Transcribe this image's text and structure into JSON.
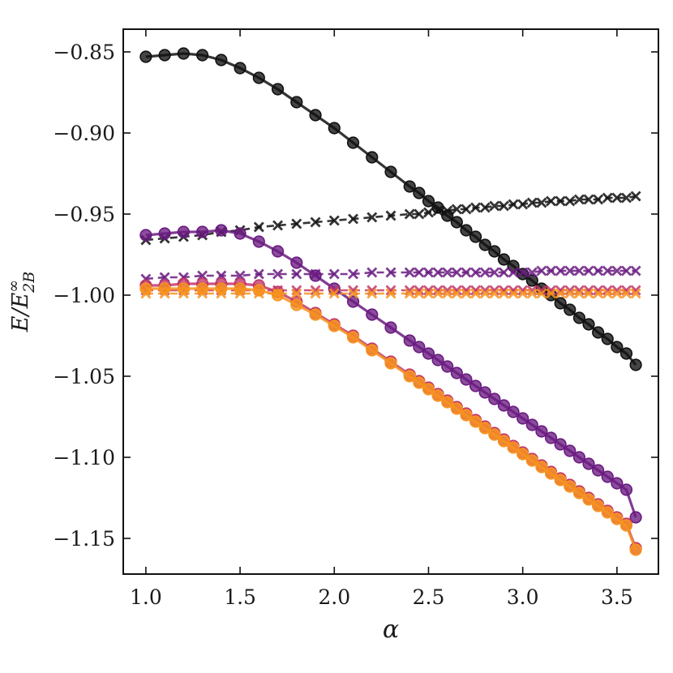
{
  "chart_data": {
    "type": "line",
    "title": "",
    "xlabel": "α",
    "ylabel": {
      "base": "E/E",
      "superscript": "∞",
      "subscript": "2B",
      "full": "E/E∞2B"
    },
    "xlim": [
      0.88,
      3.72
    ],
    "ylim": [
      -1.172,
      -0.836
    ],
    "xticks": [
      1.0,
      1.5,
      2.0,
      2.5,
      3.0,
      3.5
    ],
    "xtick_labels": [
      "1.0",
      "1.5",
      "2.0",
      "2.5",
      "3.0",
      "3.5"
    ],
    "yticks": [
      -0.85,
      -0.9,
      -0.95,
      -1.0,
      -1.05,
      -1.1,
      -1.15
    ],
    "ytick_labels": [
      "−0.85",
      "−0.90",
      "−0.95",
      "−1.00",
      "−1.05",
      "−1.10",
      "−1.15"
    ],
    "x": [
      1.0,
      1.1,
      1.2,
      1.3,
      1.4,
      1.5,
      1.6,
      1.7,
      1.8,
      1.9,
      2.0,
      2.1,
      2.2,
      2.3,
      2.4,
      2.45,
      2.5,
      2.55,
      2.6,
      2.65,
      2.7,
      2.75,
      2.8,
      2.85,
      2.9,
      2.95,
      3.0,
      3.05,
      3.1,
      3.15,
      3.2,
      3.25,
      3.3,
      3.35,
      3.4,
      3.45,
      3.5,
      3.55,
      3.6
    ],
    "series": [
      {
        "name": "black-circles",
        "marker": "circle",
        "color": "#111111",
        "values": [
          -0.853,
          -0.852,
          -0.851,
          -0.852,
          -0.855,
          -0.86,
          -0.866,
          -0.873,
          -0.881,
          -0.889,
          -0.897,
          -0.906,
          -0.915,
          -0.924,
          -0.933,
          -0.937,
          -0.942,
          -0.946,
          -0.951,
          -0.955,
          -0.96,
          -0.964,
          -0.969,
          -0.973,
          -0.978,
          -0.982,
          -0.987,
          -0.991,
          -0.996,
          -1.0,
          -1.005,
          -1.009,
          -1.014,
          -1.018,
          -1.023,
          -1.027,
          -1.032,
          -1.036,
          -1.043
        ]
      },
      {
        "name": "black-crosses",
        "marker": "cross",
        "color": "#111111",
        "values": [
          -0.966,
          -0.965,
          -0.964,
          -0.963,
          -0.961,
          -0.96,
          -0.958,
          -0.957,
          -0.956,
          -0.955,
          -0.954,
          -0.953,
          -0.952,
          -0.951,
          -0.95,
          -0.95,
          -0.949,
          -0.948,
          -0.948,
          -0.947,
          -0.947,
          -0.946,
          -0.946,
          -0.945,
          -0.945,
          -0.944,
          -0.944,
          -0.943,
          -0.943,
          -0.942,
          -0.942,
          -0.942,
          -0.941,
          -0.941,
          -0.941,
          -0.94,
          -0.94,
          -0.94,
          -0.939
        ]
      },
      {
        "name": "purple-circles",
        "marker": "circle",
        "color": "#6a1b80",
        "values": [
          -0.963,
          -0.962,
          -0.961,
          -0.961,
          -0.96,
          -0.962,
          -0.967,
          -0.973,
          -0.98,
          -0.988,
          -0.996,
          -1.004,
          -1.012,
          -1.02,
          -1.028,
          -1.032,
          -1.036,
          -1.04,
          -1.044,
          -1.048,
          -1.052,
          -1.056,
          -1.06,
          -1.064,
          -1.068,
          -1.072,
          -1.076,
          -1.08,
          -1.084,
          -1.088,
          -1.092,
          -1.096,
          -1.1,
          -1.104,
          -1.108,
          -1.112,
          -1.116,
          -1.12,
          -1.137
        ]
      },
      {
        "name": "purple-crosses",
        "marker": "cross",
        "color": "#6a1b80",
        "values": [
          -0.99,
          -0.989,
          -0.989,
          -0.988,
          -0.988,
          -0.988,
          -0.987,
          -0.987,
          -0.987,
          -0.987,
          -0.987,
          -0.987,
          -0.986,
          -0.986,
          -0.986,
          -0.986,
          -0.986,
          -0.986,
          -0.986,
          -0.986,
          -0.986,
          -0.986,
          -0.986,
          -0.986,
          -0.986,
          -0.986,
          -0.986,
          -0.986,
          -0.985,
          -0.985,
          -0.985,
          -0.985,
          -0.985,
          -0.985,
          -0.985,
          -0.985,
          -0.985,
          -0.985,
          -0.985
        ]
      },
      {
        "name": "magenta-circles",
        "marker": "circle",
        "color": "#c2376a",
        "values": [
          -0.994,
          -0.994,
          -0.993,
          -0.993,
          -0.993,
          -0.993,
          -0.994,
          -0.998,
          -1.004,
          -1.011,
          -1.018,
          -1.025,
          -1.033,
          -1.041,
          -1.049,
          -1.053,
          -1.057,
          -1.061,
          -1.065,
          -1.069,
          -1.073,
          -1.077,
          -1.081,
          -1.085,
          -1.089,
          -1.093,
          -1.097,
          -1.101,
          -1.105,
          -1.109,
          -1.113,
          -1.117,
          -1.121,
          -1.125,
          -1.129,
          -1.133,
          -1.137,
          -1.141,
          -1.156
        ]
      },
      {
        "name": "magenta-crosses",
        "marker": "cross",
        "color": "#c2376a",
        "values": [
          -0.997,
          -0.997,
          -0.997,
          -0.997,
          -0.997,
          -0.997,
          -0.997,
          -0.997,
          -0.997,
          -0.997,
          -0.997,
          -0.997,
          -0.997,
          -0.997,
          -0.997,
          -0.997,
          -0.997,
          -0.997,
          -0.997,
          -0.997,
          -0.997,
          -0.997,
          -0.997,
          -0.997,
          -0.997,
          -0.997,
          -0.997,
          -0.997,
          -0.997,
          -0.997,
          -0.997,
          -0.997,
          -0.997,
          -0.997,
          -0.997,
          -0.997,
          -0.997,
          -0.997,
          -0.997
        ]
      },
      {
        "name": "orange-circles",
        "marker": "circle",
        "color": "#f7931e",
        "values": [
          -0.996,
          -0.996,
          -0.996,
          -0.996,
          -0.996,
          -0.996,
          -0.997,
          -1.0,
          -1.006,
          -1.012,
          -1.019,
          -1.026,
          -1.034,
          -1.042,
          -1.05,
          -1.054,
          -1.058,
          -1.062,
          -1.066,
          -1.07,
          -1.074,
          -1.078,
          -1.082,
          -1.086,
          -1.09,
          -1.094,
          -1.098,
          -1.102,
          -1.106,
          -1.11,
          -1.114,
          -1.118,
          -1.122,
          -1.126,
          -1.13,
          -1.134,
          -1.138,
          -1.142,
          -1.157
        ]
      },
      {
        "name": "orange-crosses",
        "marker": "cross",
        "color": "#f7931e",
        "values": [
          -0.999,
          -0.999,
          -0.999,
          -0.999,
          -0.999,
          -0.999,
          -0.999,
          -0.999,
          -0.999,
          -0.999,
          -0.999,
          -0.999,
          -0.999,
          -0.999,
          -0.999,
          -0.999,
          -0.999,
          -0.999,
          -0.999,
          -0.999,
          -0.999,
          -0.999,
          -0.999,
          -0.999,
          -0.999,
          -0.999,
          -0.999,
          -0.999,
          -0.999,
          -0.999,
          -0.999,
          -0.999,
          -0.999,
          -0.999,
          -0.999,
          -0.999,
          -0.999,
          -0.999,
          -0.999
        ]
      }
    ],
    "grid": false,
    "legend": "none"
  }
}
